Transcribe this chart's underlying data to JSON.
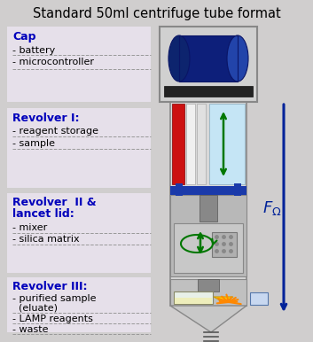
{
  "title": "Standard 50ml centrifuge tube format",
  "bg_color": "#d0cece",
  "section_bg": "#e8e4e8",
  "blue_label": "#0000bb",
  "tube_outline": "#808080",
  "blue_sep": "#1a3aaa",
  "red_cart": "#cc1111",
  "dark_blue_batt": "#0a1566",
  "green_arrow": "#008800",
  "sections": [
    {
      "label": "Cap",
      "items": [
        "- battery",
        "- microcontroller"
      ]
    },
    {
      "label": "Revolver I:",
      "items": [
        "- reagent storage",
        "- sample"
      ]
    },
    {
      "label": "Revolver  II &\nlancet lid:",
      "items": [
        "- mixer",
        "- silica matrix"
      ]
    },
    {
      "label": "Revolver III:",
      "items": [
        "- purified sample\n  (eluate)",
        "- LAMP reagents",
        "- waste"
      ]
    }
  ]
}
